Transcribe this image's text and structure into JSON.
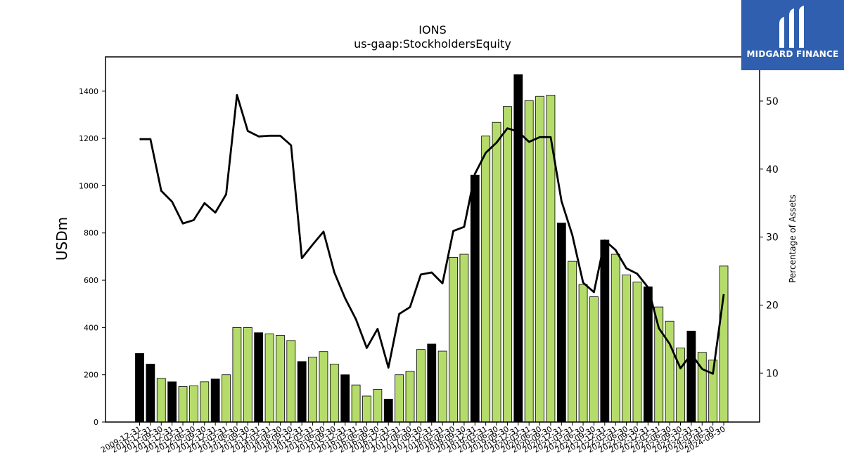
{
  "logo": {
    "text": "MIDGARD FINANCE",
    "mark_icon": "midgard-m-logo-icon",
    "background": "#2f5fae"
  },
  "chart_data": {
    "type": "bar",
    "title": "IONS",
    "subtitle": "us-gaap:StockholdersEquity",
    "ylabel": "USDm",
    "y2label": "Percentage of Assets",
    "ylim": [
      0,
      1545
    ],
    "y2lim": [
      2.8,
      56.5
    ],
    "yticks": [
      0,
      200,
      400,
      600,
      800,
      1000,
      1200,
      1400
    ],
    "y2ticks": [
      10,
      20,
      30,
      40,
      50
    ],
    "grid": false,
    "colors": {
      "annual": "#000000",
      "quarterly": "#b5dc6a",
      "line": "#000000"
    },
    "categories": [
      "2009-12-31",
      "2010-12-31",
      "2011-09-30",
      "2011-12-31",
      "2012-03-31",
      "2012-06-30",
      "2012-09-30",
      "2012-12-31",
      "2013-03-31",
      "2013-06-30",
      "2013-09-30",
      "2013-12-31",
      "2014-03-31",
      "2014-06-30",
      "2014-09-30",
      "2014-12-31",
      "2015-03-31",
      "2015-06-30",
      "2015-09-30",
      "2015-12-31",
      "2016-03-31",
      "2016-06-30",
      "2016-09-30",
      "2016-12-31",
      "2017-03-31",
      "2017-06-30",
      "2017-09-30",
      "2017-12-31",
      "2018-03-31",
      "2018-06-30",
      "2018-09-30",
      "2018-12-31",
      "2019-03-31",
      "2019-06-30",
      "2019-09-30",
      "2019-12-31",
      "2020-03-31",
      "2020-06-30",
      "2020-09-30",
      "2020-12-31",
      "2021-03-31",
      "2021-06-30",
      "2021-09-30",
      "2021-12-31",
      "2022-03-31",
      "2022-06-30",
      "2022-09-30",
      "2022-12-31",
      "2023-03-31",
      "2023-06-30",
      "2023-09-30",
      "2023-12-31",
      "2024-03-31",
      "2024-06-30",
      "2024-09-30"
    ],
    "series": [
      {
        "values": [
          290,
          245,
          185,
          170,
          150,
          153,
          170,
          182,
          200,
          400,
          400,
          378,
          373,
          367,
          345,
          256,
          275,
          298,
          245,
          200,
          157,
          110,
          138,
          97,
          200,
          215,
          307,
          330,
          300,
          697,
          710,
          1045,
          1210,
          1268,
          1335,
          1470,
          1360,
          1378,
          1383,
          842,
          680,
          582,
          530,
          770,
          710,
          622,
          592,
          572,
          487,
          427,
          313,
          385,
          295,
          262,
          660
        ],
        "period": [
          "annual",
          "annual",
          "quarterly",
          "annual",
          "quarterly",
          "quarterly",
          "quarterly",
          "annual",
          "quarterly",
          "quarterly",
          "quarterly",
          "annual",
          "quarterly",
          "quarterly",
          "quarterly",
          "annual",
          "quarterly",
          "quarterly",
          "quarterly",
          "annual",
          "quarterly",
          "quarterly",
          "quarterly",
          "annual",
          "quarterly",
          "quarterly",
          "quarterly",
          "annual",
          "quarterly",
          "quarterly",
          "quarterly",
          "annual",
          "quarterly",
          "quarterly",
          "quarterly",
          "annual",
          "quarterly",
          "quarterly",
          "quarterly",
          "annual",
          "quarterly",
          "quarterly",
          "quarterly",
          "annual",
          "quarterly",
          "quarterly",
          "quarterly",
          "annual",
          "quarterly",
          "quarterly",
          "quarterly",
          "annual",
          "quarterly",
          "quarterly",
          "quarterly"
        ]
      },
      {
        "axis": "right",
        "values": [
          44.4,
          44.4,
          36.8,
          35.2,
          32.0,
          32.5,
          35.0,
          33.6,
          36.3,
          50.9,
          45.6,
          44.8,
          44.9,
          44.9,
          43.5,
          26.9,
          28.9,
          30.8,
          24.8,
          21.0,
          17.9,
          13.7,
          16.5,
          10.8,
          18.7,
          19.7,
          24.5,
          24.8,
          23.2,
          30.9,
          31.5,
          39.3,
          42.4,
          43.9,
          46.0,
          45.5,
          44.0,
          44.7,
          44.7,
          35.3,
          30.3,
          23.3,
          21.9,
          29.5,
          28.1,
          25.4,
          24.6,
          22.6,
          16.6,
          14.3,
          10.7,
          12.8,
          10.6,
          9.9,
          21.6
        ]
      }
    ]
  }
}
